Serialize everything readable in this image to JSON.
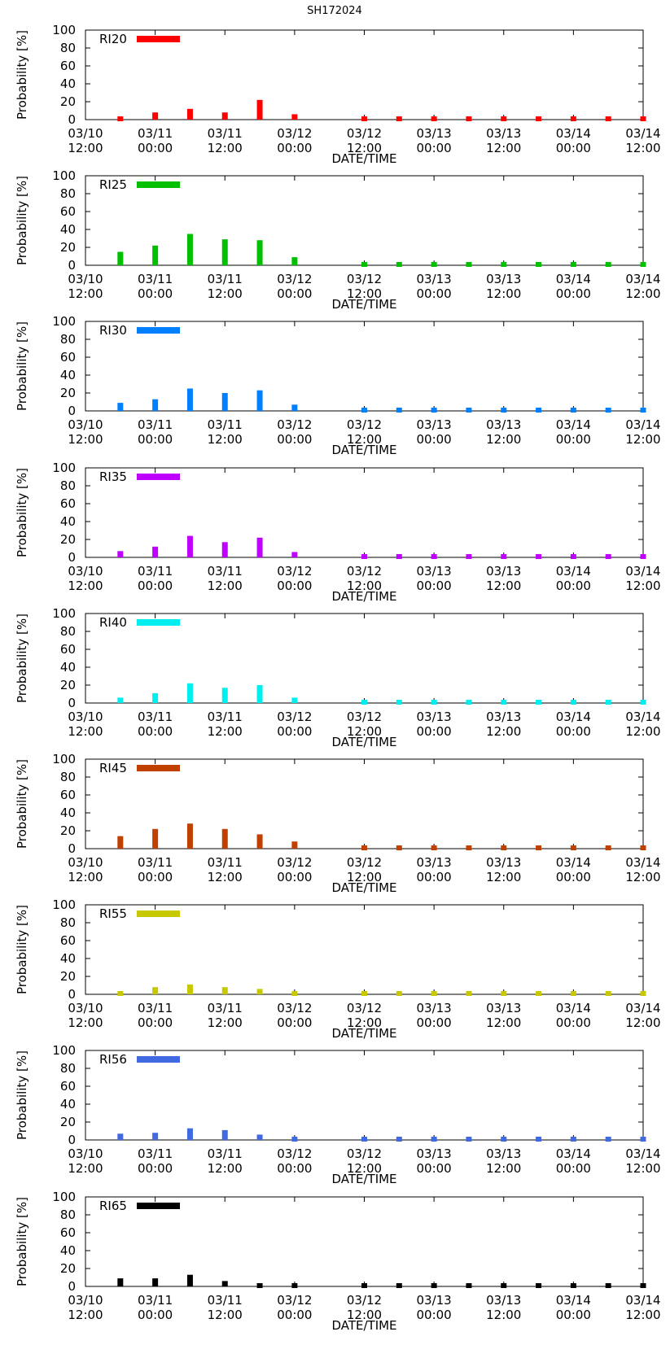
{
  "title": "SH172024",
  "chart_data": {
    "type": "bar",
    "title": "SH172024",
    "xlabel": "DATE/TIME",
    "ylabel": "Probability [%]",
    "ylim": [
      0,
      100
    ],
    "yticks": [
      "0",
      "20",
      "40",
      "60",
      "80",
      "100"
    ],
    "xticks": [
      {
        "date": "03/10",
        "time": "12:00"
      },
      {
        "date": "03/11",
        "time": "00:00"
      },
      {
        "date": "03/11",
        "time": "12:00"
      },
      {
        "date": "03/12",
        "time": "00:00"
      },
      {
        "date": "03/12",
        "time": "12:00"
      },
      {
        "date": "03/13",
        "time": "00:00"
      },
      {
        "date": "03/13",
        "time": "12:00"
      },
      {
        "date": "03/14",
        "time": "00:00"
      },
      {
        "date": "03/14",
        "time": "12:00"
      }
    ],
    "x_hours": [
      6,
      12,
      18,
      24,
      30,
      36,
      48,
      54,
      60,
      66,
      72,
      78,
      84,
      90,
      96
    ],
    "x_range_hours": [
      0,
      96
    ],
    "series": [
      {
        "name": "RI20",
        "color": "#ff0000",
        "values": [
          4,
          8,
          12,
          8,
          22,
          6,
          0,
          0,
          0,
          0,
          1,
          0,
          0,
          0,
          0
        ]
      },
      {
        "name": "RI25",
        "color": "#00c000",
        "values": [
          15,
          22,
          35,
          29,
          28,
          9,
          2,
          1,
          1,
          1,
          2,
          1,
          0,
          1,
          0
        ]
      },
      {
        "name": "RI30",
        "color": "#0080ff",
        "values": [
          9,
          13,
          25,
          20,
          23,
          7,
          0,
          0,
          0,
          0,
          0,
          0,
          0,
          0,
          0
        ]
      },
      {
        "name": "RI35",
        "color": "#c000ff",
        "values": [
          7,
          12,
          24,
          17,
          22,
          6,
          0,
          0,
          0,
          0,
          0,
          0,
          0,
          0,
          0
        ]
      },
      {
        "name": "RI40",
        "color": "#00eeee",
        "values": [
          6,
          11,
          22,
          17,
          20,
          6,
          0,
          0,
          0,
          0,
          0,
          0,
          0,
          0,
          0
        ]
      },
      {
        "name": "RI45",
        "color": "#c04000",
        "values": [
          14,
          22,
          28,
          22,
          16,
          8,
          0,
          0,
          0,
          0,
          0,
          0,
          0,
          0,
          0
        ]
      },
      {
        "name": "RI55",
        "color": "#c8c800",
        "values": [
          5,
          8,
          11,
          8,
          6,
          2,
          0,
          0,
          0,
          0,
          0,
          0,
          0,
          0,
          0
        ]
      },
      {
        "name": "RI56",
        "color": "#4169e1",
        "values": [
          7,
          8,
          13,
          11,
          6,
          2,
          0,
          0,
          0,
          0,
          0,
          0,
          0,
          0,
          0
        ]
      },
      {
        "name": "RI65",
        "color": "#000000",
        "values": [
          9,
          9,
          13,
          6,
          0,
          0,
          0,
          0,
          0,
          0,
          0,
          0,
          0,
          0,
          0
        ]
      }
    ]
  }
}
